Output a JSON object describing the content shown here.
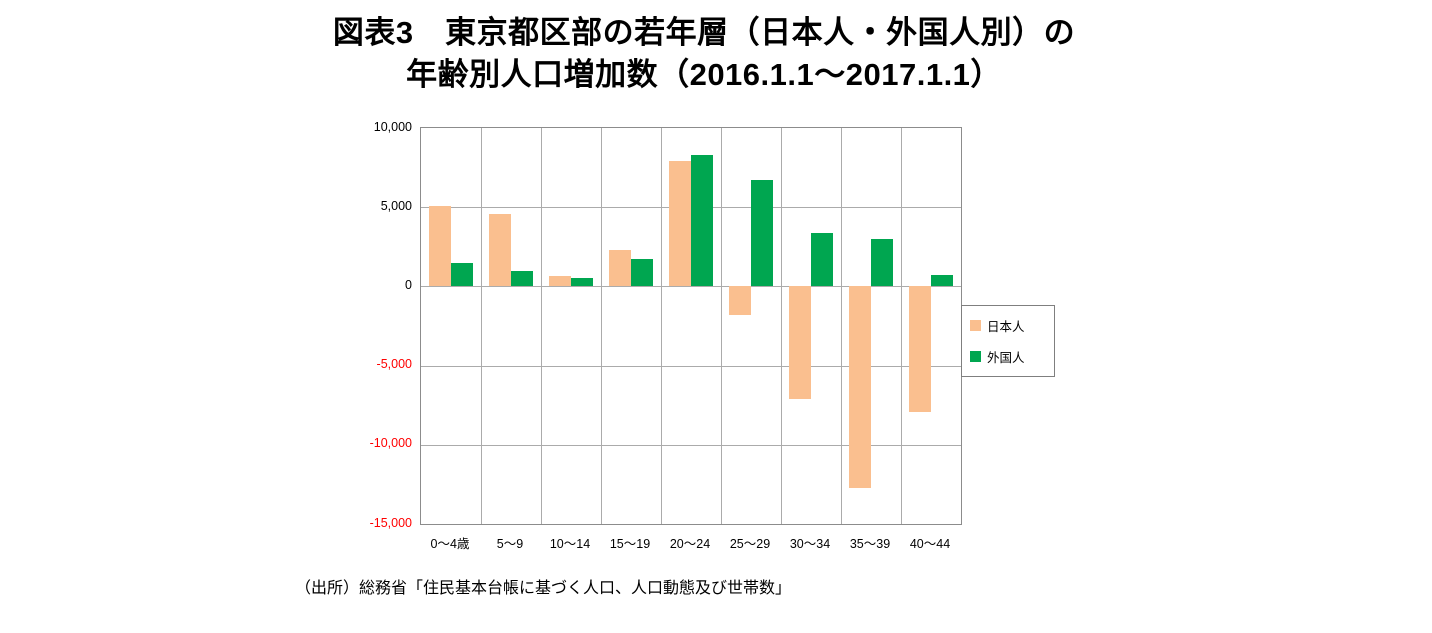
{
  "title": {
    "line1": "図表3　東京都区部の若年層（日本人・外国人別）の",
    "line2": "年齢別人口増加数（2016.1.1～2017.1.1）"
  },
  "source_note": "（出所）総務省「住民基本台帳に基づく人口、人口動態及び世帯数」",
  "chart_data": {
    "type": "bar",
    "title": "図表3 東京都区部の若年層（日本人・外国人別）の年齢別人口増加数（2016.1.1～2017.1.1）",
    "categories": [
      "0～4歳",
      "5～9",
      "10～14",
      "15～19",
      "20～24",
      "25～29",
      "30～34",
      "35～39",
      "40～44"
    ],
    "series": [
      {
        "name": "日本人",
        "color": "#FABF8F",
        "values": [
          5100,
          4600,
          650,
          2300,
          7900,
          -1800,
          -7100,
          -12700,
          -7900
        ]
      },
      {
        "name": "外国人",
        "color": "#00A650",
        "values": [
          1500,
          1000,
          500,
          1700,
          8300,
          6700,
          3400,
          3000,
          700
        ]
      }
    ],
    "ylim": [
      -15000,
      10000
    ],
    "ytick_interval": 5000,
    "ytick_labels": [
      "10,000",
      "5,000",
      "0",
      "-5,000",
      "-10,000",
      "-15,000"
    ],
    "grid": true,
    "legend_position": "right",
    "colors": {
      "negative_tick": "#FF0000",
      "gridline": "#ABABAB",
      "plot_border": "#8C8C8C"
    }
  }
}
